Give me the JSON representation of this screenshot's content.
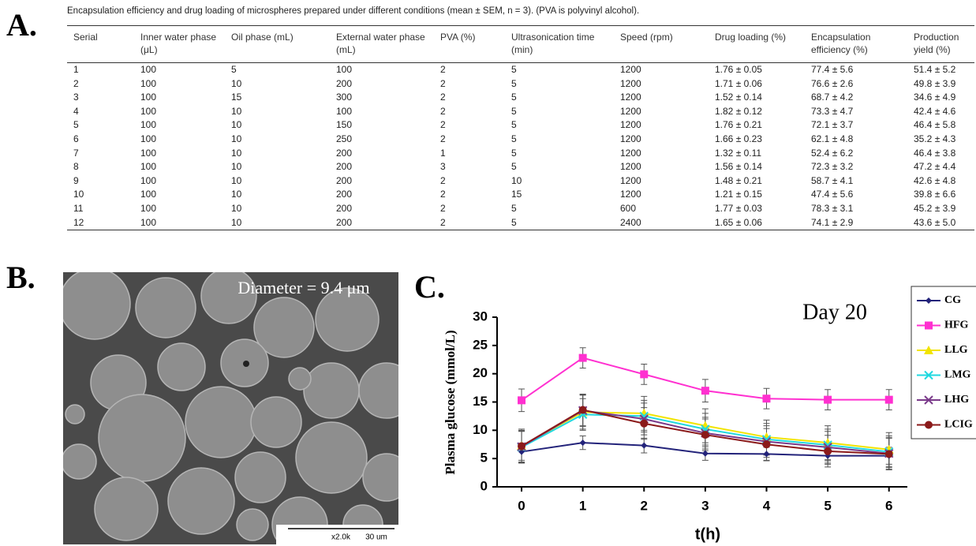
{
  "panels": {
    "a": "A.",
    "b": "B.",
    "c": "C."
  },
  "table": {
    "caption": "Encapsulation efficiency and drug loading of microspheres prepared under different conditions (mean ± SEM, n = 3). (PVA is polyvinyl alcohol).",
    "headers": [
      "Serial",
      "Inner water phase (μL)",
      "Oil phase (mL)",
      "External water phase (mL)",
      "PVA (%)",
      "Ultrasonication time (min)",
      "Speed (rpm)",
      "Drug loading (%)",
      "Encapsulation efficiency (%)",
      "Production yield (%)"
    ],
    "rows": [
      [
        "1",
        "100",
        "5",
        "100",
        "2",
        "5",
        "1200",
        "1.76 ± 0.05",
        "77.4 ± 5.6",
        "51.4 ± 5.2"
      ],
      [
        "2",
        "100",
        "10",
        "200",
        "2",
        "5",
        "1200",
        "1.71 ± 0.06",
        "76.6 ± 2.6",
        "49.8 ± 3.9"
      ],
      [
        "3",
        "100",
        "15",
        "300",
        "2",
        "5",
        "1200",
        "1.52 ± 0.14",
        "68.7 ± 4.2",
        "34.6 ± 4.9"
      ],
      [
        "4",
        "100",
        "10",
        "100",
        "2",
        "5",
        "1200",
        "1.82 ± 0.12",
        "73.3 ± 4.7",
        "42.4 ± 4.6"
      ],
      [
        "5",
        "100",
        "10",
        "150",
        "2",
        "5",
        "1200",
        "1.76 ± 0.21",
        "72.1 ± 3.7",
        "46.4 ± 5.8"
      ],
      [
        "6",
        "100",
        "10",
        "250",
        "2",
        "5",
        "1200",
        "1.66 ± 0.23",
        "62.1 ± 4.8",
        "35.2 ± 4.3"
      ],
      [
        "7",
        "100",
        "10",
        "200",
        "1",
        "5",
        "1200",
        "1.32 ± 0.11",
        "52.4 ± 6.2",
        "46.4 ± 3.8"
      ],
      [
        "8",
        "100",
        "10",
        "200",
        "3",
        "5",
        "1200",
        "1.56 ± 0.14",
        "72.3 ± 3.2",
        "47.2 ± 4.4"
      ],
      [
        "9",
        "100",
        "10",
        "200",
        "2",
        "10",
        "1200",
        "1.48 ± 0.21",
        "58.7 ± 4.1",
        "42.6 ± 4.8"
      ],
      [
        "10",
        "100",
        "10",
        "200",
        "2",
        "15",
        "1200",
        "1.21 ± 0.15",
        "47.4 ± 5.6",
        "39.8 ± 6.6"
      ],
      [
        "11",
        "100",
        "10",
        "200",
        "2",
        "5",
        "600",
        "1.77 ± 0.03",
        "78.3 ± 3.1",
        "45.2 ± 3.9"
      ],
      [
        "12",
        "100",
        "10",
        "200",
        "2",
        "5",
        "2400",
        "1.65 ± 0.06",
        "74.1 ± 2.9",
        "43.6 ± 5.0"
      ]
    ]
  },
  "sem": {
    "annotation": "Diameter = 9.4 μm",
    "magnification": "x2.0k",
    "scale": "30 um"
  },
  "chart_data": {
    "type": "line",
    "title": "Day 20",
    "y_label": "Plasma glucose (mmol/L)",
    "x_label": "t(h)",
    "x": [
      0,
      1,
      2,
      3,
      4,
      5,
      6
    ],
    "xlim": [
      -0.4,
      6.3
    ],
    "xticks": [
      0,
      1,
      2,
      3,
      4,
      5,
      6
    ],
    "ylim": [
      0,
      30
    ],
    "yticks": [
      0,
      5,
      10,
      15,
      20,
      25,
      30
    ],
    "series": [
      {
        "name": "CG",
        "color": "#23237a",
        "values": [
          6.2,
          7.8,
          7.3,
          5.9,
          5.8,
          5.5,
          5.5
        ],
        "errors": [
          1.5,
          1.2,
          1.3,
          1.2,
          1.2,
          1.5,
          1.5
        ]
      },
      {
        "name": "HFG",
        "color": "#ff30d0",
        "values": [
          15.3,
          22.8,
          19.9,
          17.0,
          15.6,
          15.4,
          15.4
        ],
        "errors": [
          2.0,
          1.8,
          1.8,
          2.0,
          1.8,
          1.8,
          1.8
        ]
      },
      {
        "name": "LLG",
        "color": "#f2e400",
        "values": [
          7.2,
          13.2,
          13.0,
          10.8,
          8.8,
          7.8,
          6.6
        ],
        "errors": [
          3.0,
          3.0,
          3.0,
          3.0,
          3.0,
          3.0,
          3.0
        ]
      },
      {
        "name": "LMG",
        "color": "#20d8e0",
        "values": [
          7.0,
          12.8,
          12.5,
          10.2,
          8.4,
          7.4,
          6.2
        ],
        "errors": [
          2.8,
          2.8,
          2.8,
          2.8,
          2.8,
          2.8,
          2.8
        ]
      },
      {
        "name": "LHG",
        "color": "#7a3a8a",
        "values": [
          7.1,
          13.5,
          12.0,
          9.5,
          8.0,
          7.0,
          5.9
        ],
        "errors": [
          2.8,
          2.8,
          2.8,
          2.8,
          2.8,
          2.8,
          2.8
        ]
      },
      {
        "name": "LCIG",
        "color": "#8b1a1a",
        "values": [
          7.2,
          13.6,
          11.2,
          9.2,
          7.5,
          6.3,
          5.8
        ],
        "errors": [
          2.8,
          2.8,
          2.8,
          2.8,
          2.8,
          2.8,
          2.8
        ]
      }
    ]
  }
}
